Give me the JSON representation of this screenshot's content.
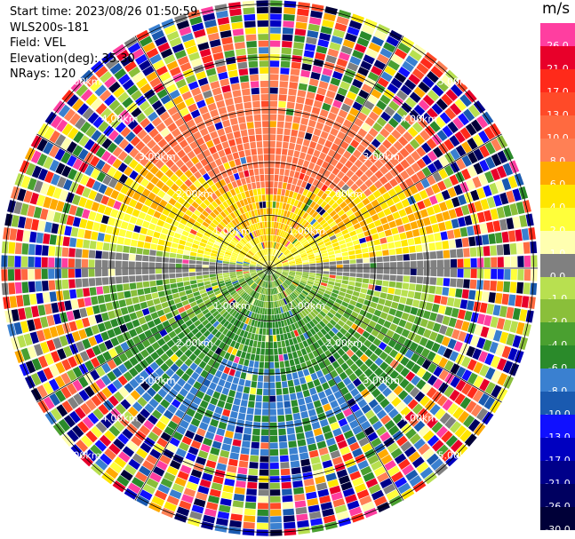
{
  "header": {
    "start_time": "Start time: 2023/08/26 01:50:59",
    "instrument": "WLS200s-181",
    "field": "Field: VEL",
    "elevation": "Elevation(deg): 35.30",
    "nrays": "NRays: 120"
  },
  "colorbar": {
    "unit": "m/s",
    "levels": [
      {
        "label": "26.0",
        "color": "#ff3ea0"
      },
      {
        "label": "21.0",
        "color": "#e8002a"
      },
      {
        "label": "17.0",
        "color": "#ff2a1a"
      },
      {
        "label": "13.0",
        "color": "#ff4a28"
      },
      {
        "label": "10.0",
        "color": "#ff6a40"
      },
      {
        "label": "8.0",
        "color": "#ff8055"
      },
      {
        "label": "6.0",
        "color": "#ffaa00"
      },
      {
        "label": "4.0",
        "color": "#ffe600"
      },
      {
        "label": "2.0",
        "color": "#ffff3a"
      },
      {
        "label": "1.0",
        "color": "#ffffb0"
      },
      {
        "label": "0.0",
        "color": "#808080"
      },
      {
        "label": "-1.0",
        "color": "#b8e050"
      },
      {
        "label": "-2.0",
        "color": "#8abf3a"
      },
      {
        "label": "-4.0",
        "color": "#4aa030"
      },
      {
        "label": "-6.0",
        "color": "#2a8a2a"
      },
      {
        "label": "-8.0",
        "color": "#3a80d0"
      },
      {
        "label": "-10.0",
        "color": "#1a5ab0"
      },
      {
        "label": "-13.0",
        "color": "#1010ff"
      },
      {
        "label": "-17.0",
        "color": "#0000c0"
      },
      {
        "label": "-21.0",
        "color": "#00008a"
      },
      {
        "label": "-26.0",
        "color": "#000060"
      },
      {
        "label": "-30.0",
        "color": "#000038"
      }
    ]
  },
  "range_rings": [
    {
      "label": "1.00km"
    },
    {
      "label": "2.00km"
    },
    {
      "label": "3.00km"
    },
    {
      "label": "4.00km"
    },
    {
      "label": "5.00km"
    }
  ]
}
